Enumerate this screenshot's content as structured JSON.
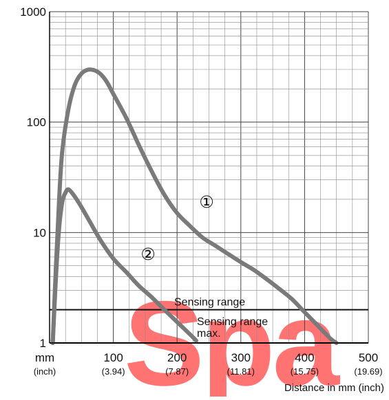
{
  "chart_data": {
    "type": "line",
    "title": "",
    "xlabel": "Distance in mm (inch)",
    "ylabel": "",
    "x_unit_label": "mm",
    "x_unit_label_secondary": "(inch)",
    "xlim": [
      0,
      500
    ],
    "ylim": [
      1,
      1000
    ],
    "y_scale": "log",
    "grid": true,
    "x_ticks": [
      {
        "value": 100,
        "label": "100",
        "sublabel": "(3.94)"
      },
      {
        "value": 200,
        "label": "200",
        "sublabel": "(7.87)"
      },
      {
        "value": 300,
        "label": "300",
        "sublabel": "(11.81)"
      },
      {
        "value": 400,
        "label": "400",
        "sublabel": "(15.75)"
      },
      {
        "value": 500,
        "label": "500",
        "sublabel": "(19.69)"
      }
    ],
    "y_ticks": [
      {
        "value": 1,
        "label": "1"
      },
      {
        "value": 10,
        "label": "10"
      },
      {
        "value": 100,
        "label": "100"
      },
      {
        "value": 1000,
        "label": "1000"
      }
    ],
    "series": [
      {
        "marker": "①",
        "color": "#7a7a7a",
        "points": [
          [
            5,
            1.0
          ],
          [
            10,
            5
          ],
          [
            15,
            20
          ],
          [
            20,
            55
          ],
          [
            30,
            135
          ],
          [
            40,
            220
          ],
          [
            50,
            275
          ],
          [
            60,
            298
          ],
          [
            70,
            295
          ],
          [
            80,
            272
          ],
          [
            90,
            230
          ],
          [
            100,
            180
          ],
          [
            120,
            110
          ],
          [
            140,
            62
          ],
          [
            160,
            36
          ],
          [
            180,
            22
          ],
          [
            200,
            15
          ],
          [
            220,
            11.5
          ],
          [
            240,
            9
          ],
          [
            260,
            7.6
          ],
          [
            280,
            6.4
          ],
          [
            300,
            5.4
          ],
          [
            320,
            4.6
          ],
          [
            340,
            3.8
          ],
          [
            360,
            3.1
          ],
          [
            380,
            2.5
          ],
          [
            400,
            1.9
          ],
          [
            420,
            1.45
          ],
          [
            440,
            1.1
          ],
          [
            450,
            1.0
          ]
        ]
      },
      {
        "marker": "②",
        "color": "#7a7a7a",
        "points": [
          [
            5,
            1.0
          ],
          [
            10,
            4
          ],
          [
            15,
            11
          ],
          [
            20,
            19
          ],
          [
            25,
            23
          ],
          [
            30,
            24.5
          ],
          [
            40,
            21
          ],
          [
            50,
            17
          ],
          [
            60,
            13.5
          ],
          [
            80,
            8.5
          ],
          [
            100,
            5.8
          ],
          [
            120,
            4.4
          ],
          [
            140,
            3.3
          ],
          [
            160,
            2.6
          ],
          [
            180,
            2.0
          ],
          [
            200,
            1.55
          ],
          [
            220,
            1.2
          ],
          [
            230,
            1.05
          ]
        ]
      }
    ],
    "reference_lines": [
      {
        "label": "Sensing range",
        "y": 2.0
      },
      {
        "label": "Sensing range max.",
        "label_lines": [
          "Sensing range",
          "max."
        ],
        "y": 1.0
      }
    ],
    "watermark": {
      "text": "Spa",
      "color": "#ff5a5a"
    }
  }
}
